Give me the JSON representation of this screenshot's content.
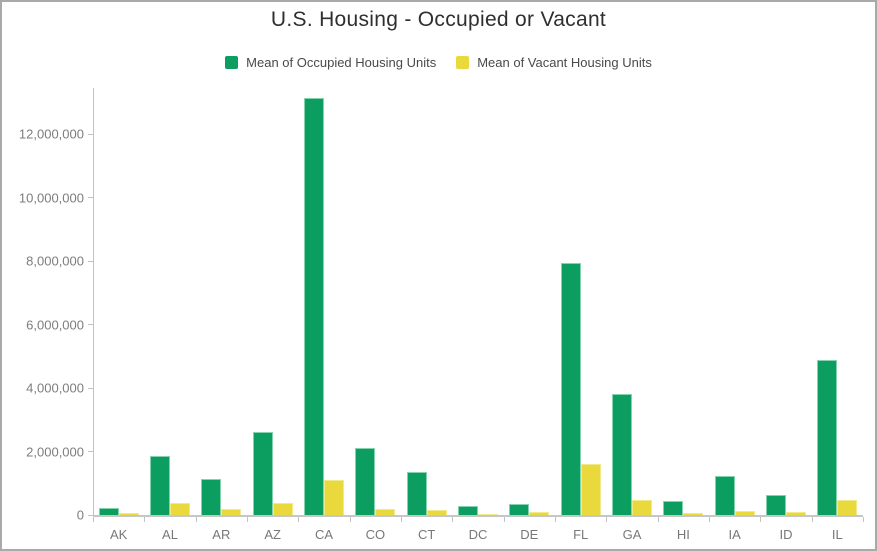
{
  "window": {
    "background": "#ffffff",
    "border_color": "#a9a9a9"
  },
  "colors": {
    "title_text": "#2f2f2f",
    "legend_text": "#4a4a4a",
    "axis_label": "#7d7d7d",
    "axis_line": "#c2c2c2"
  },
  "chart_data": {
    "type": "bar",
    "title": "U.S. Housing - Occupied or Vacant",
    "xlabel": "",
    "ylabel": "",
    "categories": [
      "AK",
      "AL",
      "AR",
      "AZ",
      "CA",
      "CO",
      "CT",
      "DC",
      "DE",
      "FL",
      "GA",
      "HI",
      "IA",
      "ID",
      "IL"
    ],
    "series": [
      {
        "name": "Mean of Occupied Housing Units",
        "color": "#0b9e60",
        "values": [
          220000,
          1870000,
          1130000,
          2630000,
          13150000,
          2120000,
          1350000,
          280000,
          360000,
          7930000,
          3820000,
          430000,
          1240000,
          640000,
          4890000
        ]
      },
      {
        "name": "Mean of Vacant Housing Units",
        "color": "#e9d93c",
        "values": [
          70000,
          380000,
          180000,
          390000,
          1100000,
          200000,
          150000,
          30000,
          110000,
          1610000,
          460000,
          70000,
          135000,
          90000,
          460000
        ]
      }
    ],
    "ylim": [
      0,
      13450000
    ],
    "yticks": [
      0,
      2000000,
      4000000,
      6000000,
      8000000,
      10000000,
      12000000
    ],
    "grid": false,
    "legend_position": "top"
  }
}
